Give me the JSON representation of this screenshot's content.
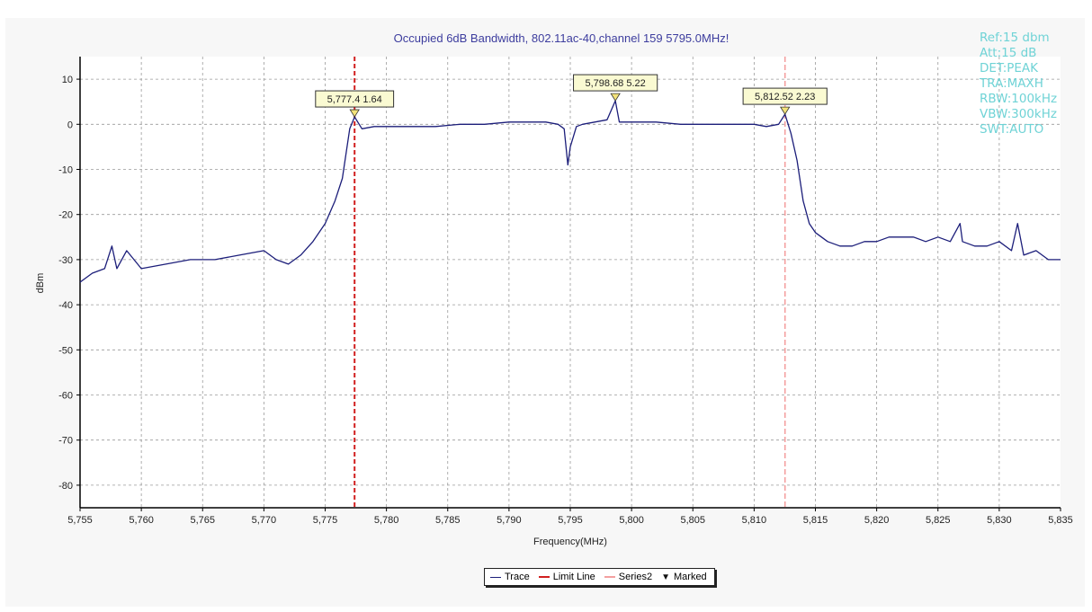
{
  "chart_data": {
    "type": "line",
    "title": "Occupied 6dB Bandwidth, 802.11ac-40,channel 159  5795.0MHz!",
    "xlabel": "Frequency(MHz)",
    "ylabel": "dBm",
    "xlim": [
      5755,
      5835
    ],
    "ylim": [
      -85,
      15
    ],
    "x_ticks": [
      "5,755",
      "5,760",
      "5,765",
      "5,770",
      "5,775",
      "5,780",
      "5,785",
      "5,790",
      "5,795",
      "5,800",
      "5,805",
      "5,810",
      "5,815",
      "5,820",
      "5,825",
      "5,830",
      "5,835"
    ],
    "y_ticks": [
      "10",
      "0",
      "-10",
      "-20",
      "-30",
      "-40",
      "-50",
      "-60",
      "-70",
      "-80"
    ],
    "grid": true,
    "legend_position": "bottom-center",
    "series": [
      {
        "name": "Trace",
        "color": "#1c1e7a",
        "x": [
          5755,
          5756,
          5757,
          5757.6,
          5758,
          5758.8,
          5760,
          5762,
          5764,
          5766,
          5768,
          5770,
          5771,
          5772,
          5773,
          5774,
          5775,
          5775.8,
          5776.4,
          5777,
          5777.4,
          5778,
          5779,
          5780,
          5782,
          5784,
          5786,
          5788,
          5790,
          5792,
          5793,
          5794,
          5794.5,
          5794.8,
          5795,
          5795.5,
          5796,
          5797,
          5798,
          5798.68,
          5799,
          5800,
          5802,
          5804,
          5806,
          5808,
          5809.5,
          5810,
          5811,
          5812,
          5812.52,
          5813,
          5813.5,
          5814,
          5814.5,
          5815,
          5816,
          5817,
          5818,
          5819,
          5820,
          5821,
          5822,
          5823,
          5824,
          5825,
          5826,
          5826.8,
          5827,
          5828,
          5829,
          5830,
          5831,
          5831.5,
          5832,
          5833,
          5834,
          5835
        ],
        "y": [
          -35,
          -33,
          -32,
          -27,
          -32,
          -28,
          -32,
          -31,
          -30,
          -30,
          -29,
          -28,
          -30,
          -31,
          -29,
          -26,
          -22,
          -17,
          -12,
          -1,
          1.64,
          -1,
          -0.5,
          -0.5,
          -0.5,
          -0.5,
          0,
          0,
          0.5,
          0.5,
          0.5,
          0,
          -1,
          -9,
          -5,
          -0.5,
          0,
          0.5,
          1,
          5.22,
          0.5,
          0.5,
          0.5,
          0,
          0,
          0,
          0,
          0,
          -0.5,
          0,
          2.23,
          -2,
          -8,
          -17,
          -22,
          -24,
          -26,
          -27,
          -27,
          -26,
          -26,
          -25,
          -25,
          -25,
          -26,
          -25,
          -26,
          -22,
          -26,
          -27,
          -27,
          -26,
          -28,
          -22,
          -29,
          -28,
          -30,
          -30
        ]
      },
      {
        "name": "Limit Line",
        "color": "#d11f1f",
        "x": [
          5777.4,
          5777.4
        ],
        "y": [
          -85,
          15
        ]
      },
      {
        "name": "Series2",
        "color": "#f4a0a0",
        "x": [
          5812.52,
          5812.52
        ],
        "y": [
          -85,
          15
        ]
      }
    ],
    "markers": [
      {
        "x": 5777.4,
        "y": 1.64,
        "label": "5,777.4 1.64"
      },
      {
        "x": 5798.68,
        "y": 5.22,
        "label": "5,798.68 5.22"
      },
      {
        "x": 5812.52,
        "y": 2.23,
        "label": "5,812.52 2.23"
      }
    ],
    "legend": [
      "Trace",
      "Limit Line",
      "Series2",
      "Marked"
    ]
  },
  "settings": [
    "Ref:15 dbm",
    "Att:15 dB",
    "DET:PEAK",
    "TRA:MAXH",
    "RBW:100kHz",
    "VBW:300kHz",
    "SWT:AUTO"
  ],
  "colors": {
    "trace": "#1c1e7a",
    "limit": "#d11f1f",
    "series2": "#f4a0a0",
    "marker": "#f3e27a",
    "title": "#3d3d9e",
    "settings": "#6fd3d6"
  }
}
